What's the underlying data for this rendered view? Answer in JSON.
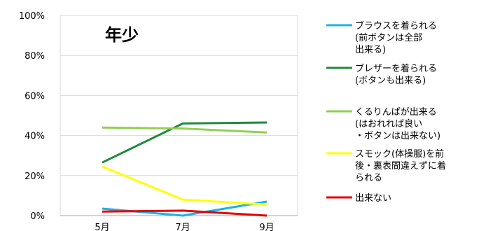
{
  "chart_data": {
    "type": "line",
    "title": "年少",
    "categories": [
      "5月",
      "7月",
      "9月"
    ],
    "ylim": [
      0,
      100
    ],
    "yticks": [
      "0%",
      "20%",
      "40%",
      "60%",
      "80%",
      "100%"
    ],
    "grid": true,
    "legend_position": "right",
    "series": [
      {
        "name": "ブラウスを着られる(前ボタンは全部出来る)",
        "name_lines": [
          "ブラウスを着られる",
          "(前ボタンは全部",
          "出来る)"
        ],
        "color": "#1fb0e6",
        "values": [
          3.5,
          0,
          7
        ]
      },
      {
        "name": "ブレザーを着られる(ボタンも出来る)",
        "name_lines": [
          "ブレザーを着られる",
          "(ボタンも出来る)"
        ],
        "color": "#1f8a3c",
        "values": [
          26.5,
          46,
          46.5
        ]
      },
      {
        "name": "くるりんぱが出来る(はおれれば良い・ボタンは出来ない)",
        "name_lines": [
          "くるりんぱが出来る",
          "(はおれれば良い",
          "・ボタンは出来ない)"
        ],
        "color": "#92d050",
        "values": [
          44,
          43.5,
          41.5
        ]
      },
      {
        "name": "スモック(体操服)を前後・裏表間違えずに着られる",
        "name_lines": [
          "スモック(体操服)を前",
          "後・裏表間違えずに着",
          "られる"
        ],
        "color": "#ffff00",
        "values": [
          24.5,
          8,
          5.5
        ]
      },
      {
        "name": "出来ない",
        "name_lines": [
          "出来ない"
        ],
        "color": "#e60000",
        "values": [
          2,
          2.5,
          0
        ]
      }
    ]
  }
}
